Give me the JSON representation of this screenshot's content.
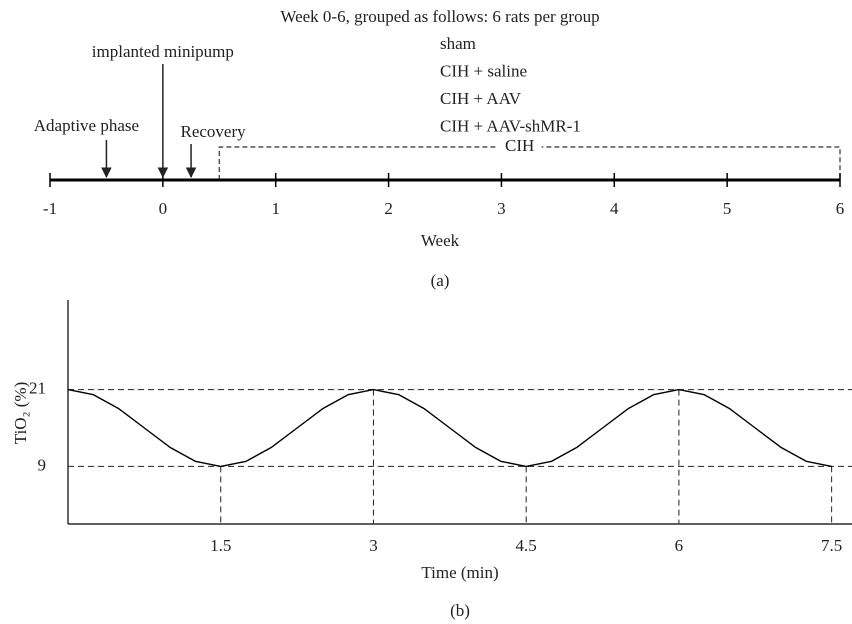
{
  "chart_data": [
    {
      "type": "timeline",
      "panel": "(a)",
      "group_title": "Week 0-6, grouped as follows: 6 rats per group",
      "groups": [
        "sham",
        "CIH + saline",
        "CIH + AAV",
        "CIH + AAV-shMR-1"
      ],
      "events": [
        {
          "label": "Adaptive phase",
          "x": -0.5
        },
        {
          "label": "implanted minipump",
          "x": 0
        },
        {
          "label": "Recovery",
          "x": 0.25
        }
      ],
      "span": {
        "label": "CIH",
        "start": 0.5,
        "end": 6
      },
      "xlabel": "Week",
      "xlim": [
        -1,
        6
      ],
      "xticks": [
        -1,
        0,
        1,
        2,
        3,
        4,
        5,
        6
      ]
    },
    {
      "type": "line",
      "panel": "(b)",
      "xlabel": "Time (min)",
      "ylabel": "TiO₂ (%)",
      "x": [
        0,
        0.25,
        0.5,
        0.75,
        1,
        1.25,
        1.5,
        1.75,
        2,
        2.25,
        2.5,
        2.75,
        3,
        3.25,
        3.5,
        3.75,
        4,
        4.25,
        4.5,
        4.75,
        5,
        5.25,
        5.5,
        5.75,
        6,
        6.25,
        6.5,
        6.75,
        7,
        7.25,
        7.5
      ],
      "series": [
        {
          "color": "#000000",
          "values": [
            21,
            20.2,
            18,
            15,
            12,
            9.8,
            9,
            9.8,
            12,
            15,
            18,
            20.2,
            21,
            20.2,
            18,
            15,
            12,
            9.8,
            9,
            9.8,
            12,
            15,
            18,
            20.2,
            21,
            20.2,
            18,
            15,
            12,
            9.8,
            9
          ]
        }
      ],
      "xlim": [
        0,
        7.7
      ],
      "ylim": [
        0,
        35
      ],
      "xticks": [
        1.5,
        3,
        4.5,
        6,
        7.5
      ],
      "yticks": [
        9,
        21
      ],
      "grid": true
    }
  ]
}
